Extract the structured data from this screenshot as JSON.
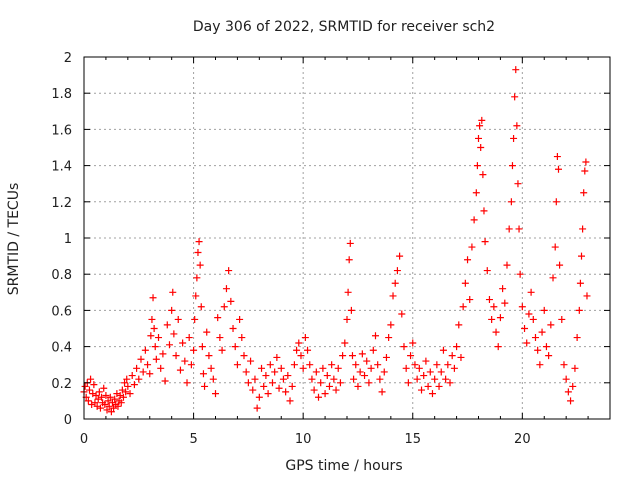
{
  "chart_data": {
    "type": "scatter",
    "title": "Day 306 of 2022, SRMTID for receiver sch2",
    "xlabel": "GPS time / hours",
    "ylabel": "SRMTID / TECUs",
    "xlim": [
      0,
      24
    ],
    "ylim": [
      0,
      2
    ],
    "x_ticks": [
      0,
      5,
      10,
      15,
      20
    ],
    "x_tick_labels": [
      "0",
      "5",
      "10",
      "15",
      "20"
    ],
    "y_ticks": [
      0,
      0.2,
      0.4,
      0.6,
      0.8,
      1.0,
      1.2,
      1.4,
      1.6,
      1.8,
      2.0
    ],
    "y_tick_labels": [
      "0",
      "0.2",
      "0.4",
      "0.6",
      "0.8",
      "1",
      "1.2",
      "1.4",
      "1.6",
      "1.8",
      "2"
    ],
    "grid": true,
    "marker": "+",
    "series": [
      {
        "name": "SRMTID",
        "color": "#ff0000",
        "points": [
          [
            0.0,
            0.15
          ],
          [
            0.05,
            0.18
          ],
          [
            0.1,
            0.12
          ],
          [
            0.15,
            0.2
          ],
          [
            0.2,
            0.1
          ],
          [
            0.25,
            0.16
          ],
          [
            0.3,
            0.22
          ],
          [
            0.35,
            0.08
          ],
          [
            0.4,
            0.14
          ],
          [
            0.45,
            0.19
          ],
          [
            0.5,
            0.09
          ],
          [
            0.55,
            0.13
          ],
          [
            0.6,
            0.07
          ],
          [
            0.65,
            0.11
          ],
          [
            0.7,
            0.15
          ],
          [
            0.75,
            0.06
          ],
          [
            0.8,
            0.12
          ],
          [
            0.85,
            0.09
          ],
          [
            0.9,
            0.17
          ],
          [
            0.95,
            0.08
          ],
          [
            1.0,
            0.13
          ],
          [
            1.05,
            0.05
          ],
          [
            1.1,
            0.1
          ],
          [
            1.15,
            0.07
          ],
          [
            1.2,
            0.12
          ],
          [
            1.25,
            0.04
          ],
          [
            1.3,
            0.09
          ],
          [
            1.35,
            0.06
          ],
          [
            1.4,
            0.11
          ],
          [
            1.45,
            0.08
          ],
          [
            1.5,
            0.14
          ],
          [
            1.55,
            0.07
          ],
          [
            1.6,
            0.1
          ],
          [
            1.65,
            0.13
          ],
          [
            1.7,
            0.09
          ],
          [
            1.75,
            0.16
          ],
          [
            1.8,
            0.12
          ],
          [
            1.85,
            0.2
          ],
          [
            1.9,
            0.15
          ],
          [
            1.95,
            0.22
          ],
          [
            2.0,
            0.18
          ],
          [
            2.1,
            0.14
          ],
          [
            2.2,
            0.24
          ],
          [
            2.3,
            0.19
          ],
          [
            2.4,
            0.28
          ],
          [
            2.5,
            0.22
          ],
          [
            2.6,
            0.33
          ],
          [
            2.7,
            0.26
          ],
          [
            2.8,
            0.38
          ],
          [
            2.9,
            0.3
          ],
          [
            3.0,
            0.25
          ],
          [
            3.05,
            0.46
          ],
          [
            3.1,
            0.55
          ],
          [
            3.15,
            0.67
          ],
          [
            3.2,
            0.5
          ],
          [
            3.25,
            0.4
          ],
          [
            3.3,
            0.33
          ],
          [
            3.4,
            0.45
          ],
          [
            3.5,
            0.28
          ],
          [
            3.6,
            0.36
          ],
          [
            3.7,
            0.21
          ],
          [
            3.8,
            0.52
          ],
          [
            3.9,
            0.41
          ],
          [
            4.0,
            0.6
          ],
          [
            4.05,
            0.7
          ],
          [
            4.1,
            0.47
          ],
          [
            4.2,
            0.35
          ],
          [
            4.3,
            0.55
          ],
          [
            4.4,
            0.27
          ],
          [
            4.5,
            0.42
          ],
          [
            4.6,
            0.32
          ],
          [
            4.7,
            0.2
          ],
          [
            4.8,
            0.45
          ],
          [
            4.9,
            0.3
          ],
          [
            5.0,
            0.38
          ],
          [
            5.05,
            0.55
          ],
          [
            5.1,
            0.68
          ],
          [
            5.15,
            0.78
          ],
          [
            5.2,
            0.92
          ],
          [
            5.25,
            0.98
          ],
          [
            5.3,
            0.85
          ],
          [
            5.35,
            0.62
          ],
          [
            5.4,
            0.4
          ],
          [
            5.45,
            0.25
          ],
          [
            5.5,
            0.18
          ],
          [
            5.6,
            0.48
          ],
          [
            5.7,
            0.35
          ],
          [
            5.8,
            0.28
          ],
          [
            5.9,
            0.22
          ],
          [
            6.0,
            0.14
          ],
          [
            6.1,
            0.56
          ],
          [
            6.2,
            0.45
          ],
          [
            6.3,
            0.38
          ],
          [
            6.4,
            0.62
          ],
          [
            6.5,
            0.72
          ],
          [
            6.6,
            0.82
          ],
          [
            6.7,
            0.65
          ],
          [
            6.8,
            0.5
          ],
          [
            6.9,
            0.4
          ],
          [
            7.0,
            0.3
          ],
          [
            7.1,
            0.55
          ],
          [
            7.2,
            0.45
          ],
          [
            7.3,
            0.35
          ],
          [
            7.4,
            0.26
          ],
          [
            7.5,
            0.2
          ],
          [
            7.6,
            0.32
          ],
          [
            7.7,
            0.16
          ],
          [
            7.8,
            0.22
          ],
          [
            7.9,
            0.06
          ],
          [
            8.0,
            0.12
          ],
          [
            8.1,
            0.28
          ],
          [
            8.2,
            0.18
          ],
          [
            8.3,
            0.24
          ],
          [
            8.4,
            0.14
          ],
          [
            8.5,
            0.3
          ],
          [
            8.6,
            0.2
          ],
          [
            8.7,
            0.26
          ],
          [
            8.8,
            0.34
          ],
          [
            8.9,
            0.17
          ],
          [
            9.0,
            0.28
          ],
          [
            9.1,
            0.22
          ],
          [
            9.2,
            0.15
          ],
          [
            9.3,
            0.24
          ],
          [
            9.4,
            0.1
          ],
          [
            9.5,
            0.18
          ],
          [
            9.6,
            0.3
          ],
          [
            9.7,
            0.38
          ],
          [
            9.8,
            0.42
          ],
          [
            9.9,
            0.35
          ],
          [
            10.0,
            0.28
          ],
          [
            10.1,
            0.45
          ],
          [
            10.2,
            0.38
          ],
          [
            10.3,
            0.3
          ],
          [
            10.4,
            0.22
          ],
          [
            10.5,
            0.16
          ],
          [
            10.6,
            0.26
          ],
          [
            10.7,
            0.12
          ],
          [
            10.8,
            0.2
          ],
          [
            10.9,
            0.28
          ],
          [
            11.0,
            0.14
          ],
          [
            11.1,
            0.24
          ],
          [
            11.2,
            0.18
          ],
          [
            11.3,
            0.3
          ],
          [
            11.4,
            0.22
          ],
          [
            11.5,
            0.16
          ],
          [
            11.6,
            0.28
          ],
          [
            11.7,
            0.2
          ],
          [
            11.8,
            0.35
          ],
          [
            11.9,
            0.42
          ],
          [
            12.0,
            0.55
          ],
          [
            12.05,
            0.7
          ],
          [
            12.1,
            0.88
          ],
          [
            12.15,
            0.97
          ],
          [
            12.2,
            0.6
          ],
          [
            12.25,
            0.35
          ],
          [
            12.3,
            0.22
          ],
          [
            12.4,
            0.3
          ],
          [
            12.5,
            0.18
          ],
          [
            12.6,
            0.26
          ],
          [
            12.7,
            0.36
          ],
          [
            12.8,
            0.24
          ],
          [
            12.9,
            0.32
          ],
          [
            13.0,
            0.2
          ],
          [
            13.1,
            0.28
          ],
          [
            13.2,
            0.38
          ],
          [
            13.3,
            0.46
          ],
          [
            13.4,
            0.3
          ],
          [
            13.5,
            0.22
          ],
          [
            13.6,
            0.15
          ],
          [
            13.7,
            0.26
          ],
          [
            13.8,
            0.34
          ],
          [
            13.9,
            0.45
          ],
          [
            14.0,
            0.52
          ],
          [
            14.1,
            0.68
          ],
          [
            14.2,
            0.75
          ],
          [
            14.3,
            0.82
          ],
          [
            14.4,
            0.9
          ],
          [
            14.5,
            0.58
          ],
          [
            14.6,
            0.4
          ],
          [
            14.7,
            0.28
          ],
          [
            14.8,
            0.2
          ],
          [
            14.9,
            0.35
          ],
          [
            15.0,
            0.42
          ],
          [
            15.1,
            0.3
          ],
          [
            15.2,
            0.22
          ],
          [
            15.3,
            0.28
          ],
          [
            15.4,
            0.16
          ],
          [
            15.5,
            0.24
          ],
          [
            15.6,
            0.32
          ],
          [
            15.7,
            0.18
          ],
          [
            15.8,
            0.26
          ],
          [
            15.9,
            0.14
          ],
          [
            16.0,
            0.22
          ],
          [
            16.1,
            0.3
          ],
          [
            16.2,
            0.18
          ],
          [
            16.3,
            0.26
          ],
          [
            16.4,
            0.38
          ],
          [
            16.5,
            0.22
          ],
          [
            16.6,
            0.3
          ],
          [
            16.7,
            0.2
          ],
          [
            16.8,
            0.35
          ],
          [
            16.9,
            0.28
          ],
          [
            17.0,
            0.4
          ],
          [
            17.1,
            0.52
          ],
          [
            17.2,
            0.34
          ],
          [
            17.3,
            0.62
          ],
          [
            17.4,
            0.75
          ],
          [
            17.5,
            0.88
          ],
          [
            17.6,
            0.66
          ],
          [
            17.7,
            0.95
          ],
          [
            17.8,
            1.1
          ],
          [
            17.9,
            1.25
          ],
          [
            17.95,
            1.4
          ],
          [
            18.0,
            1.55
          ],
          [
            18.05,
            1.62
          ],
          [
            18.1,
            1.5
          ],
          [
            18.15,
            1.65
          ],
          [
            18.2,
            1.35
          ],
          [
            18.25,
            1.15
          ],
          [
            18.3,
            0.98
          ],
          [
            18.4,
            0.82
          ],
          [
            18.5,
            0.66
          ],
          [
            18.6,
            0.55
          ],
          [
            18.7,
            0.62
          ],
          [
            18.8,
            0.48
          ],
          [
            18.9,
            0.4
          ],
          [
            19.0,
            0.56
          ],
          [
            19.1,
            0.72
          ],
          [
            19.2,
            0.64
          ],
          [
            19.3,
            0.85
          ],
          [
            19.4,
            1.05
          ],
          [
            19.5,
            1.2
          ],
          [
            19.55,
            1.4
          ],
          [
            19.6,
            1.55
          ],
          [
            19.65,
            1.78
          ],
          [
            19.7,
            1.93
          ],
          [
            19.75,
            1.62
          ],
          [
            19.8,
            1.3
          ],
          [
            19.85,
            1.05
          ],
          [
            19.9,
            0.8
          ],
          [
            20.0,
            0.62
          ],
          [
            20.1,
            0.5
          ],
          [
            20.2,
            0.42
          ],
          [
            20.3,
            0.58
          ],
          [
            20.4,
            0.7
          ],
          [
            20.5,
            0.55
          ],
          [
            20.6,
            0.45
          ],
          [
            20.7,
            0.38
          ],
          [
            20.8,
            0.3
          ],
          [
            20.9,
            0.48
          ],
          [
            21.0,
            0.6
          ],
          [
            21.1,
            0.4
          ],
          [
            21.2,
            0.35
          ],
          [
            21.3,
            0.52
          ],
          [
            21.4,
            0.78
          ],
          [
            21.5,
            0.95
          ],
          [
            21.55,
            1.2
          ],
          [
            21.6,
            1.45
          ],
          [
            21.65,
            1.38
          ],
          [
            21.7,
            0.85
          ],
          [
            21.8,
            0.55
          ],
          [
            21.9,
            0.3
          ],
          [
            22.0,
            0.22
          ],
          [
            22.1,
            0.15
          ],
          [
            22.2,
            0.1
          ],
          [
            22.3,
            0.18
          ],
          [
            22.4,
            0.28
          ],
          [
            22.5,
            0.45
          ],
          [
            22.6,
            0.6
          ],
          [
            22.65,
            0.75
          ],
          [
            22.7,
            0.9
          ],
          [
            22.75,
            1.05
          ],
          [
            22.8,
            1.25
          ],
          [
            22.85,
            1.37
          ],
          [
            22.9,
            1.42
          ],
          [
            22.95,
            0.68
          ]
        ]
      }
    ]
  }
}
